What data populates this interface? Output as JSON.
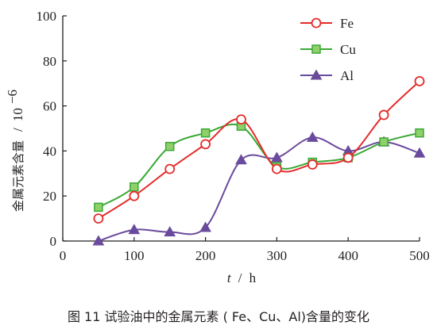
{
  "chart_data": {
    "type": "line",
    "x": [
      50,
      100,
      150,
      200,
      250,
      300,
      350,
      400,
      450,
      500
    ],
    "xlim": [
      0,
      500
    ],
    "ylim": [
      0,
      100
    ],
    "xticks": [
      "0",
      "100",
      "200",
      "300",
      "400",
      "500"
    ],
    "yticks": [
      "0",
      "20",
      "40",
      "60",
      "80",
      "100"
    ],
    "xlabel_italic": "t",
    "xlabel_unit": "h",
    "ylabel": "金属元素含量",
    "ylabel_unit": "10",
    "ylabel_unit_exp": "−6",
    "legend_position": "top-right",
    "grid": false,
    "series": [
      {
        "name": "Fe",
        "color": "#e32c2a",
        "marker": "circle",
        "values": [
          10,
          20,
          32,
          43,
          54,
          32,
          34,
          37,
          56,
          71
        ]
      },
      {
        "name": "Cu",
        "color": "#3aa935",
        "marker": "square",
        "values": [
          15,
          24,
          42,
          48,
          51,
          33,
          35,
          37,
          44,
          48
        ]
      },
      {
        "name": "Al",
        "color": "#6a4a9c",
        "marker": "triangle",
        "values": [
          0,
          5,
          4,
          6,
          36,
          37,
          46,
          40,
          44,
          39
        ]
      }
    ]
  },
  "caption": "图 11   试验油中的金属元素 ( Fe、Cu、Al)含量的变化"
}
